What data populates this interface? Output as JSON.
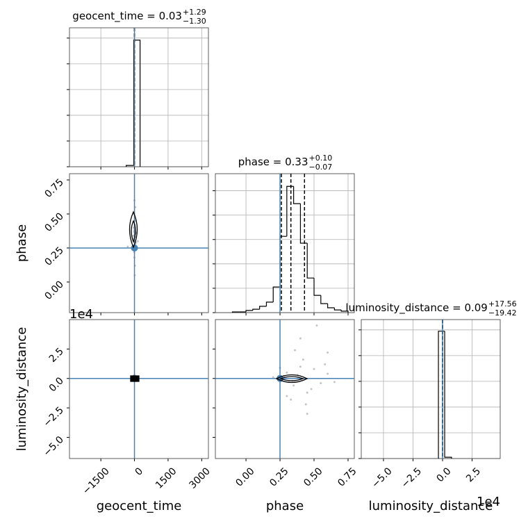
{
  "chart_data": [
    {
      "type": "histogram",
      "title": {
        "text": "geocent_time = 0.03",
        "upper": "+1.29",
        "lower": "−1.30"
      },
      "bins": [
        -370,
        -30,
        250
      ],
      "counts": [
        0.05,
        4.92
      ],
      "color": "#000000",
      "xlim": [
        -2900,
        3300
      ],
      "ylim": [
        0,
        5.4
      ],
      "xticks": [
        -1500,
        0,
        1500,
        3000
      ],
      "yticks": [
        0,
        1,
        2,
        3,
        4,
        5
      ],
      "xtick_labels": false,
      "ytick_labels": false,
      "grid": true,
      "quantiles": [
        -1.27,
        0.03,
        1.32
      ],
      "truth": 0,
      "truth_color": "#4682b4"
    },
    {
      "type": "scatter",
      "x": [
        -20,
        15,
        40,
        -35,
        60,
        -10,
        25,
        5,
        -50,
        30,
        80,
        -5,
        10,
        -25,
        45,
        0,
        -60,
        20,
        70,
        -15,
        35,
        -40,
        12,
        -300,
        150
      ],
      "y": [
        0.3,
        0.35,
        0.28,
        0.4,
        0.33,
        0.22,
        0.45,
        0.38,
        0.31,
        0.27,
        0.36,
        0.18,
        0.42,
        0.5,
        0.25,
        0.6,
        0.34,
        0.12,
        0.29,
        0.37,
        0.55,
        0.32,
        0.05,
        0.26,
        0.3
      ],
      "color": "#c4c4cc",
      "xlim": [
        -2900,
        3300
      ],
      "ylim": [
        -0.225,
        0.796
      ],
      "xticks": [
        -1500,
        0,
        1500,
        3000
      ],
      "yticks": [
        {
          "value": 0,
          "label": "0.00"
        },
        0.25,
        {
          "value": 0.5,
          "label": "0.50"
        },
        0.75
      ],
      "xtick_labels": false,
      "ytick_labels": true,
      "grid": false,
      "ylabel": "phase",
      "truth_x": 0,
      "truth_y": 0.25,
      "truth_color": "#4682b4"
    },
    {
      "type": "histogram",
      "title": {
        "text": "phase = 0.33",
        "upper": "+0.10",
        "lower": "−0.07"
      },
      "bins": [
        -0.1,
        -0.05,
        0,
        0.05,
        0.1,
        0.15,
        0.2,
        0.25,
        0.3,
        0.35,
        0.4,
        0.45,
        0.5,
        0.55,
        0.6,
        0.65,
        0.7,
        0.75
      ],
      "counts": [
        0.03,
        0.03,
        0.09,
        0.14,
        0.26,
        0.43,
        1.05,
        3.13,
        5.18,
        4.47,
        2.85,
        1.42,
        0.71,
        0.37,
        0.2,
        0.11,
        0.06
      ],
      "color": "#000000",
      "xlim": [
        -0.225,
        0.796
      ],
      "ylim": [
        0,
        5.7
      ],
      "xticks": [
        0,
        0.25,
        0.5,
        0.75
      ],
      "yticks": [
        0,
        1,
        2,
        3,
        4,
        5
      ],
      "xtick_labels": false,
      "ytick_labels": false,
      "grid": true,
      "quantiles": [
        0.26,
        0.33,
        0.43
      ],
      "truth": 0.25,
      "truth_color": "#4682b4"
    },
    {
      "type": "scatter",
      "x": [
        -20,
        15,
        40,
        -35,
        60,
        -10,
        25,
        5,
        -50,
        30,
        80,
        -5,
        10,
        -25,
        45,
        0,
        120,
        90
      ],
      "y": [
        0.05,
        -0.1,
        0.15,
        -0.05,
        0.1,
        0.2,
        -0.15,
        0,
        0.08,
        -0.2,
        0.02,
        0.25,
        -0.08,
        0.12,
        -0.02,
        0.3,
        0.0,
        -0.1
      ],
      "color": "#c4c4cc",
      "xlim": [
        -2900,
        3300
      ],
      "ylim": [
        -6.8,
        5.0
      ],
      "xticks": [
        {
          "value": -1500,
          "label": "−1500"
        },
        0,
        1500,
        3000
      ],
      "yticks": [
        {
          "value": -5,
          "label": "−5.0"
        },
        {
          "value": -2.5,
          "label": "−2.5"
        },
        {
          "value": 0,
          "label": "0.0"
        },
        2.5
      ],
      "xtick_labels": true,
      "ytick_labels": true,
      "grid": false,
      "xlabel": "geocent_time",
      "ylabel": "luminosity_distance",
      "offset": "1e4",
      "truth_x": 0,
      "truth_y": 0,
      "truth_color": "#4682b4"
    },
    {
      "type": "scatter",
      "x": [
        0.3,
        0.35,
        0.4,
        0.45,
        0.38,
        0.5,
        0.55,
        0.28,
        0.33,
        0.42,
        0.48,
        0.6,
        0.36,
        0.52,
        0.45,
        0.4,
        0.3,
        0.6,
        0.2,
        0.65,
        0.25,
        0.44,
        0.58,
        0.34
      ],
      "y": [
        0.5,
        -0.6,
        1.0,
        -1.2,
        0.3,
        0.8,
        -0.4,
        0.2,
        -1.8,
        1.6,
        -0.9,
        0.4,
        2.4,
        4.5,
        -3.0,
        3.4,
        -1.5,
        2.2,
        0.1,
        -0.3,
        0.9,
        -2.2,
        1.2,
        -0.2
      ],
      "color": "#c4c4cc",
      "xlim": [
        -0.225,
        0.796
      ],
      "ylim": [
        -6.8,
        5.0
      ],
      "xticks": [
        {
          "value": 0,
          "label": "0.00"
        },
        0.25,
        {
          "value": 0.5,
          "label": "0.50"
        },
        0.75
      ],
      "yticks": [
        -5,
        -2.5,
        0,
        2.5
      ],
      "xtick_labels": true,
      "ytick_labels": false,
      "grid": false,
      "xlabel": "phase",
      "truth_x": 0.25,
      "truth_y": 0,
      "truth_color": "#4682b4"
    },
    {
      "type": "histogram",
      "title": {
        "text": "luminosity_distance = 0.09",
        "upper": "+17.56",
        "lower": "−19.42"
      },
      "bins": [
        -0.35,
        0.18,
        0.76
      ],
      "counts": [
        4.95,
        0.05
      ],
      "color": "#000000",
      "xlim": [
        -6.88,
        4.88
      ],
      "ylim": [
        0,
        5.4
      ],
      "xticks": [
        {
          "value": -5,
          "label": "−5.0"
        },
        {
          "value": -2.5,
          "label": "−2.5"
        },
        {
          "value": 0,
          "label": "0.0"
        },
        2.5
      ],
      "yticks": [
        0,
        1,
        2,
        3,
        4,
        5
      ],
      "xtick_labels": true,
      "ytick_labels": false,
      "grid": true,
      "xlabel": "luminosity_distance",
      "offset": "1e4",
      "quantiles": [
        -0.00193,
        9e-06,
        0.00177
      ],
      "truth": 0,
      "truth_color": "#4682b4"
    }
  ]
}
